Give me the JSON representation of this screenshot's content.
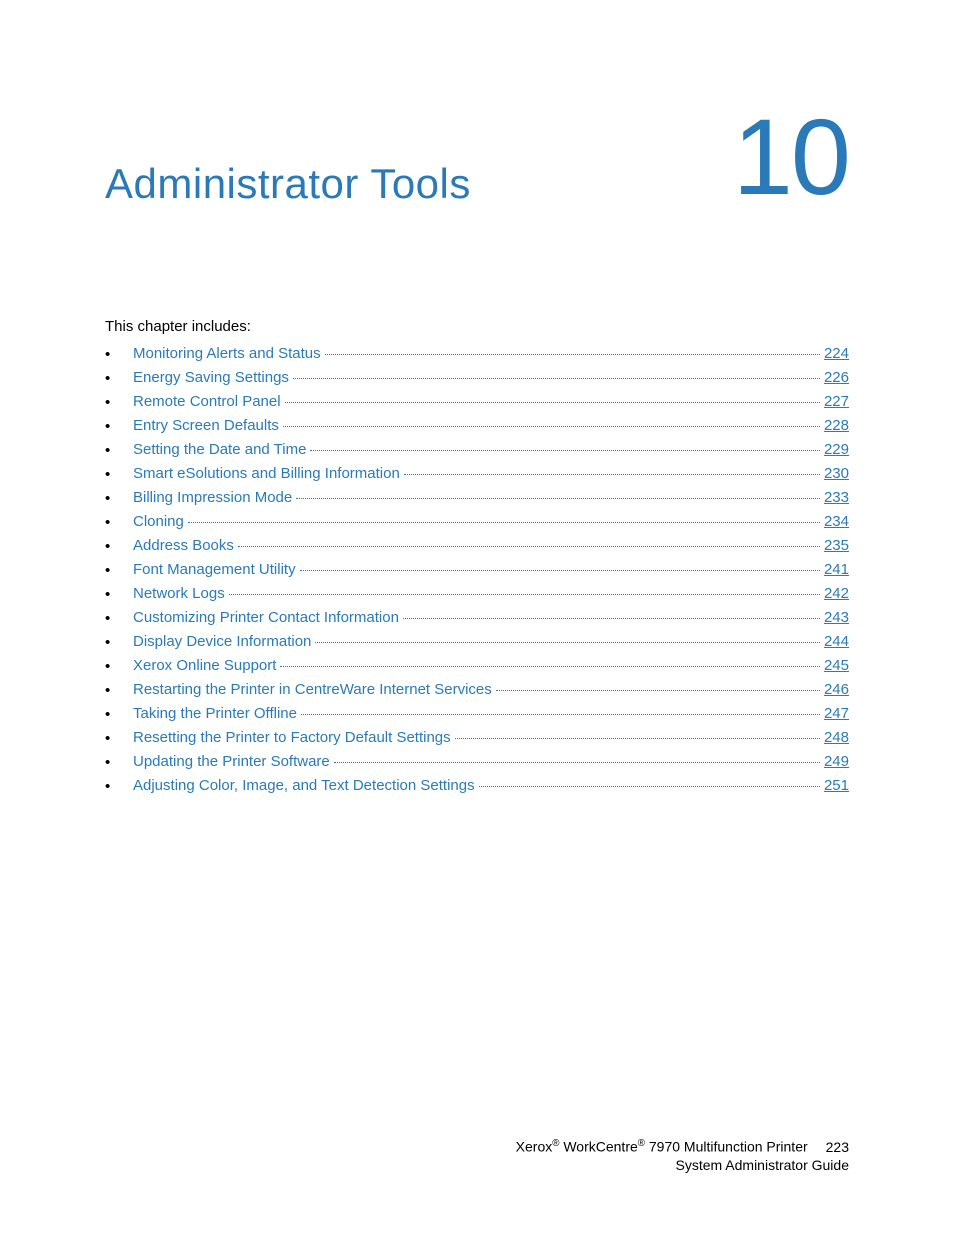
{
  "colors": {
    "link": "#2a7ab9",
    "text": "#000000",
    "background": "#ffffff"
  },
  "header": {
    "title": "Administrator Tools",
    "chapter_number": "10"
  },
  "intro": "This chapter includes:",
  "toc": [
    {
      "label": "Monitoring Alerts and Status",
      "page": "224"
    },
    {
      "label": "Energy Saving Settings",
      "page": "226"
    },
    {
      "label": "Remote Control Panel",
      "page": "227"
    },
    {
      "label": "Entry Screen Defaults",
      "page": "228"
    },
    {
      "label": "Setting the Date and Time",
      "page": "229"
    },
    {
      "label": "Smart eSolutions and Billing Information",
      "page": "230"
    },
    {
      "label": "Billing Impression Mode",
      "page": "233"
    },
    {
      "label": "Cloning",
      "page": "234"
    },
    {
      "label": "Address Books",
      "page": "235"
    },
    {
      "label": "Font Management Utility",
      "page": "241"
    },
    {
      "label": "Network Logs",
      "page": "242"
    },
    {
      "label": "Customizing Printer Contact Information",
      "page": "243"
    },
    {
      "label": "Display Device Information",
      "page": "244"
    },
    {
      "label": "Xerox Online Support",
      "page": "245"
    },
    {
      "label": "Restarting the Printer in CentreWare Internet Services",
      "page": "246"
    },
    {
      "label": "Taking the Printer Offline",
      "page": "247"
    },
    {
      "label": "Resetting the Printer to Factory Default Settings",
      "page": "248"
    },
    {
      "label": "Updating the Printer Software",
      "page": "249"
    },
    {
      "label": "Adjusting Color, Image, and Text Detection Settings",
      "page": "251"
    }
  ],
  "footer": {
    "line1_prefix": "Xerox",
    "line1_mid": " WorkCentre",
    "line1_suffix": " 7970 Multifunction Printer",
    "line2": "System Administrator Guide",
    "page_number": "223",
    "reg_mark": "®"
  }
}
